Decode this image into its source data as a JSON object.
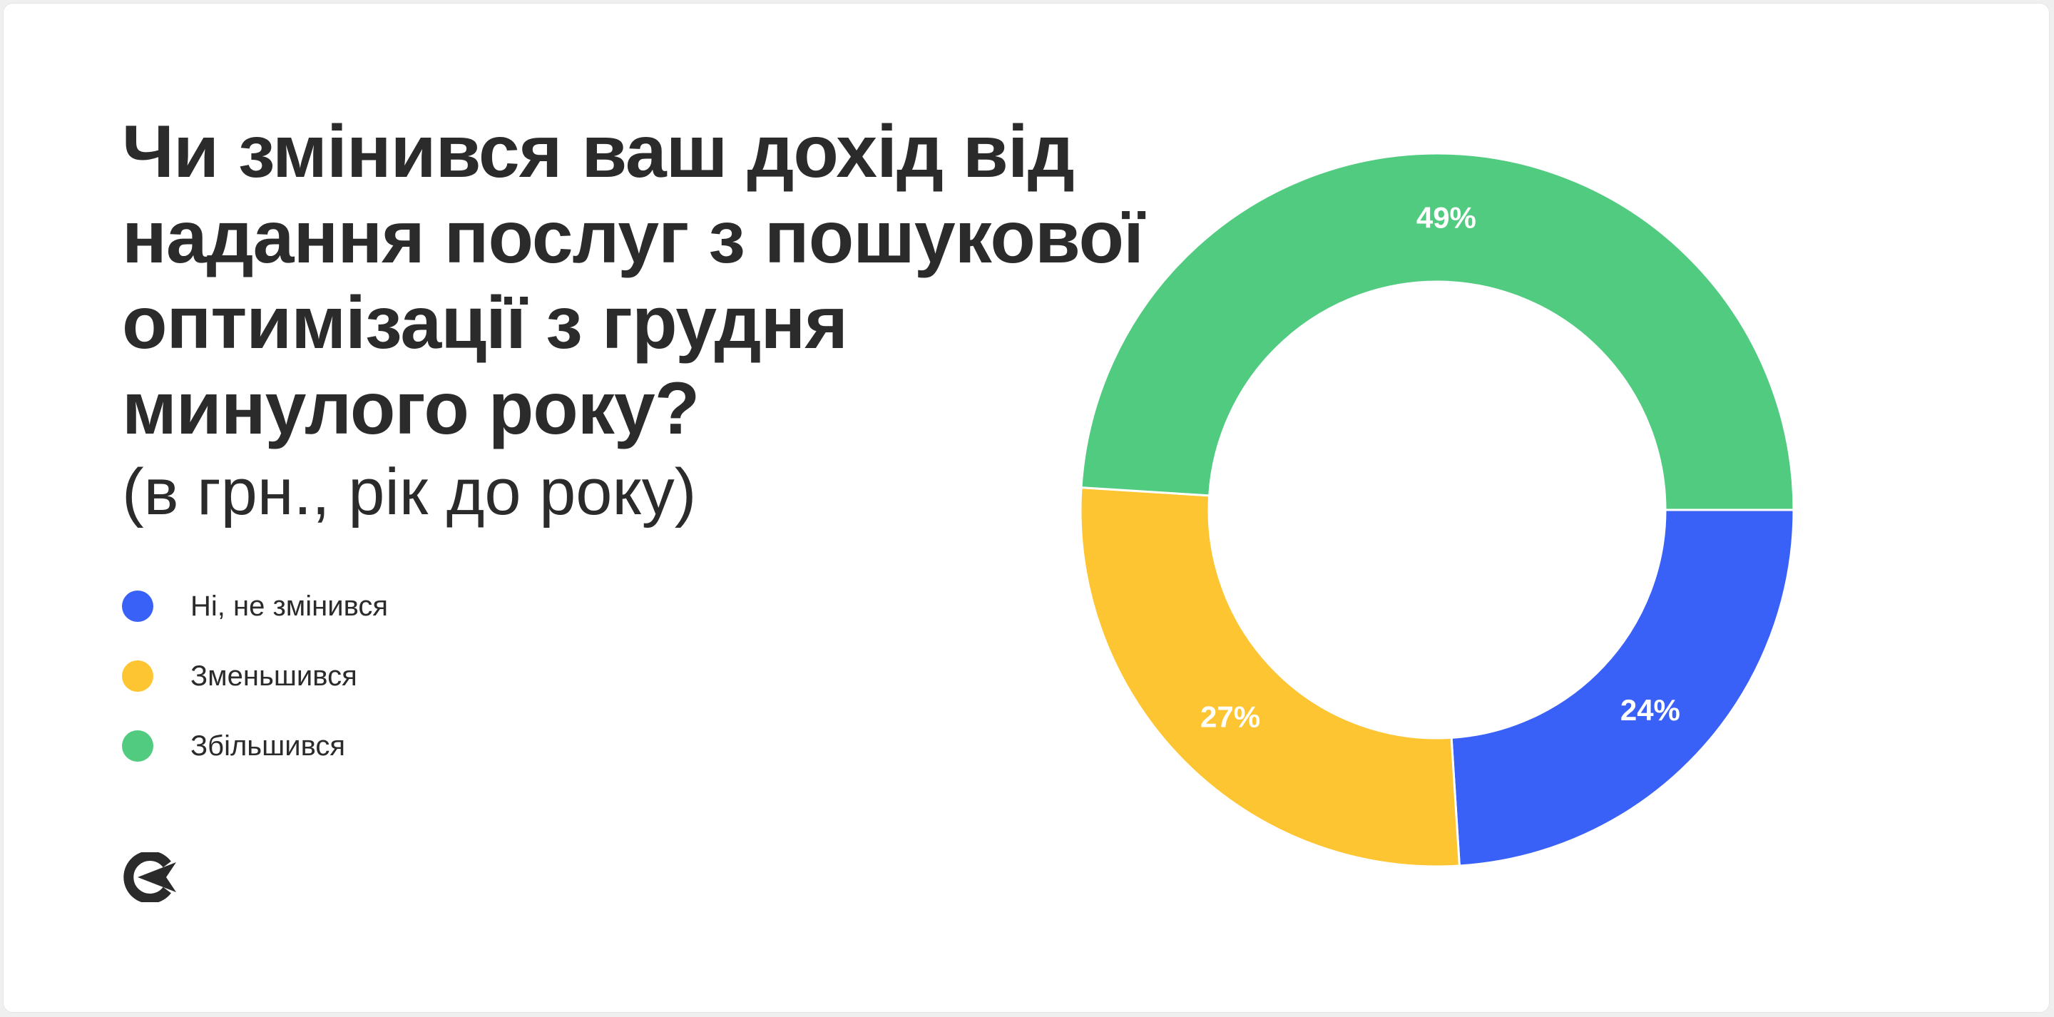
{
  "title_lines": [
    "Чи змінився ваш дохід від",
    "надання послуг з пошукової",
    "оптимізації з грудня",
    "минулого року?"
  ],
  "subtitle": "(в грн., рік до року)",
  "legend": [
    {
      "label": "Ні, не змінився",
      "color": "#3a61f7"
    },
    {
      "label": "Зменьшився",
      "color": "#fec532"
    },
    {
      "label": "Збільшився",
      "color": "#51cb80"
    }
  ],
  "logo_icon": "brand-logo-icon",
  "chart_data": {
    "type": "pie",
    "variant": "donut",
    "title": "",
    "categories": [
      "Ні, не змінився",
      "Зменьшився",
      "Збільшився"
    ],
    "values": [
      24,
      27,
      49
    ],
    "labels": [
      "24%",
      "27%",
      "49%"
    ],
    "colors": [
      "#3a61f7",
      "#fec532",
      "#51cb80"
    ],
    "unit": "%",
    "start_angle_deg": 0,
    "direction": "clockwise",
    "legend_position": "left"
  }
}
